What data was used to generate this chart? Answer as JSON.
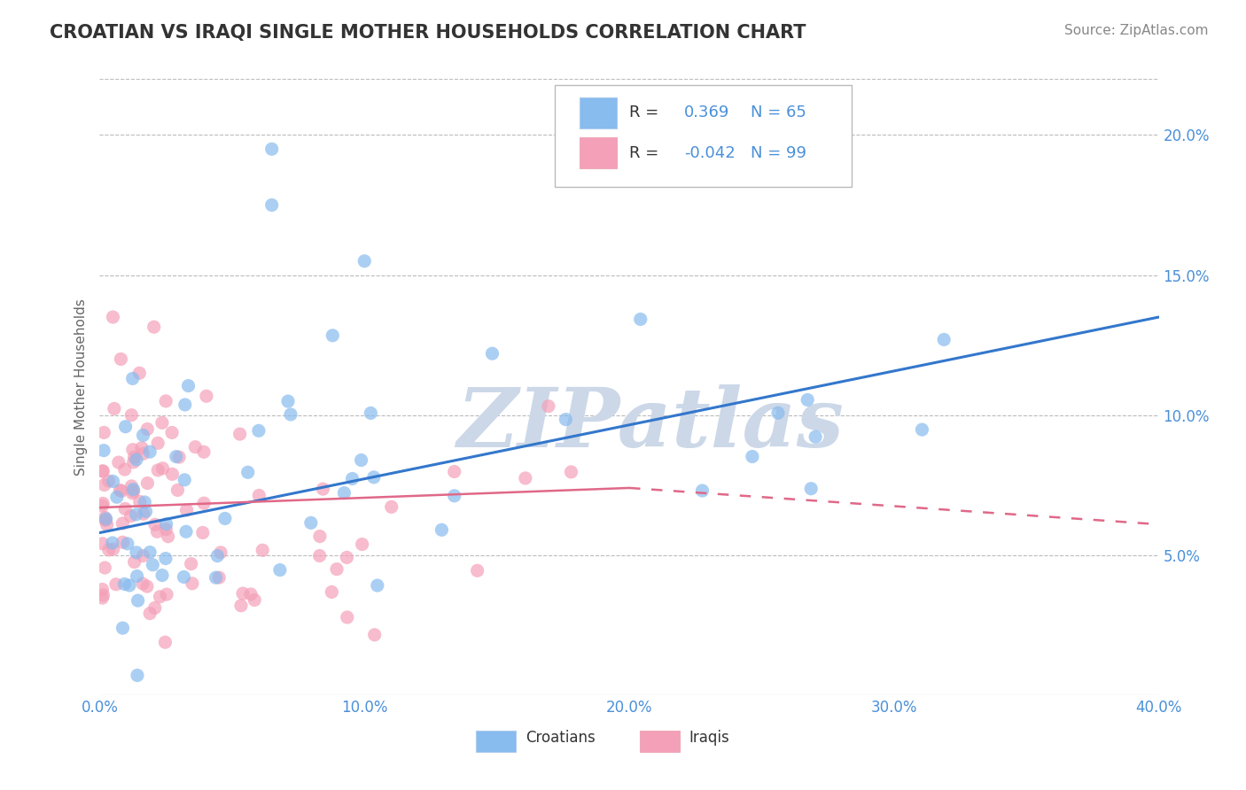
{
  "title": "CROATIAN VS IRAQI SINGLE MOTHER HOUSEHOLDS CORRELATION CHART",
  "source": "Source: ZipAtlas.com",
  "ylabel": "Single Mother Households",
  "legend_croatians": "Croatians",
  "legend_iraqis": "Iraqis",
  "R_croatians": 0.369,
  "N_croatians": 65,
  "R_iraqis": -0.042,
  "N_iraqis": 99,
  "xlim": [
    0.0,
    0.4
  ],
  "ylim": [
    0.0,
    0.22
  ],
  "xticks": [
    0.0,
    0.1,
    0.2,
    0.3,
    0.4
  ],
  "yticks": [
    0.05,
    0.1,
    0.15,
    0.2
  ],
  "color_croatians": "#88bbee",
  "color_iraqis": "#f4a0b8",
  "color_trend_croatians": "#3377cc",
  "color_trend_iraqis": "#e06888",
  "watermark": "ZIPatlas",
  "watermark_color": "#ccd8e8",
  "title_color": "#333333",
  "tick_label_color": "#4a90d9",
  "background_color": "#ffffff",
  "grid_color": "#bbbbbb",
  "title_fontsize": 15,
  "axis_label_fontsize": 11,
  "tick_fontsize": 12,
  "legend_fontsize": 13,
  "source_fontsize": 11,
  "trend_cro_x0": 0.0,
  "trend_cro_y0": 0.058,
  "trend_cro_x1": 0.4,
  "trend_cro_y1": 0.135,
  "trend_irq_solid_x0": 0.0,
  "trend_irq_solid_y0": 0.067,
  "trend_irq_solid_x1": 0.2,
  "trend_irq_solid_y1": 0.074,
  "trend_irq_dash_x0": 0.2,
  "trend_irq_dash_y0": 0.074,
  "trend_irq_dash_x1": 0.4,
  "trend_irq_dash_y1": 0.061
}
